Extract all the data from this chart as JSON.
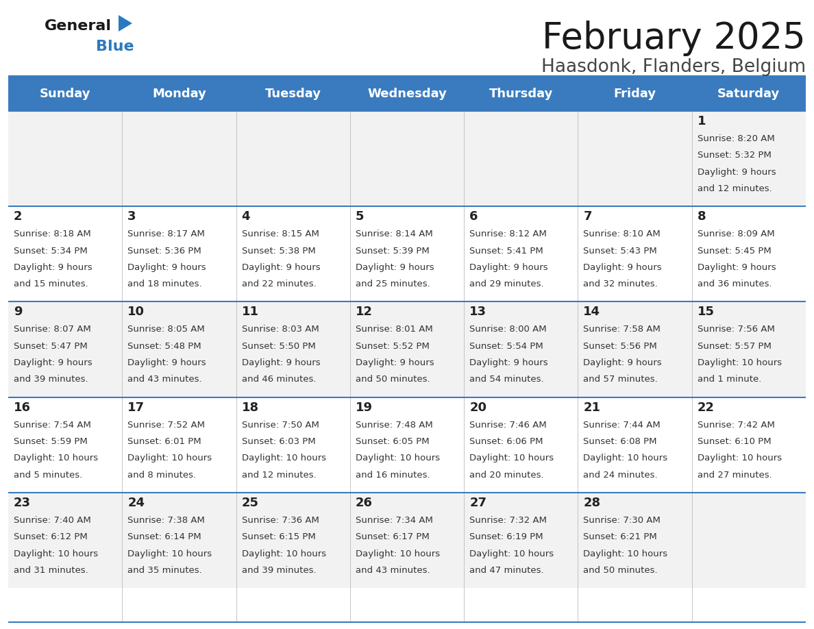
{
  "title": "February 2025",
  "subtitle": "Haasdonk, Flanders, Belgium",
  "header_color": "#3a7bbf",
  "header_text_color": "#ffffff",
  "cell_bg_odd": "#f2f2f2",
  "cell_bg_even": "#ffffff",
  "border_color": "#3a7bbf",
  "day_headers": [
    "Sunday",
    "Monday",
    "Tuesday",
    "Wednesday",
    "Thursday",
    "Friday",
    "Saturday"
  ],
  "title_color": "#1a1a1a",
  "subtitle_color": "#444444",
  "day_num_color": "#222222",
  "info_color": "#333333",
  "weeks": [
    [
      {
        "day": "",
        "info": ""
      },
      {
        "day": "",
        "info": ""
      },
      {
        "day": "",
        "info": ""
      },
      {
        "day": "",
        "info": ""
      },
      {
        "day": "",
        "info": ""
      },
      {
        "day": "",
        "info": ""
      },
      {
        "day": "1",
        "info": "Sunrise: 8:20 AM\nSunset: 5:32 PM\nDaylight: 9 hours\nand 12 minutes."
      }
    ],
    [
      {
        "day": "2",
        "info": "Sunrise: 8:18 AM\nSunset: 5:34 PM\nDaylight: 9 hours\nand 15 minutes."
      },
      {
        "day": "3",
        "info": "Sunrise: 8:17 AM\nSunset: 5:36 PM\nDaylight: 9 hours\nand 18 minutes."
      },
      {
        "day": "4",
        "info": "Sunrise: 8:15 AM\nSunset: 5:38 PM\nDaylight: 9 hours\nand 22 minutes."
      },
      {
        "day": "5",
        "info": "Sunrise: 8:14 AM\nSunset: 5:39 PM\nDaylight: 9 hours\nand 25 minutes."
      },
      {
        "day": "6",
        "info": "Sunrise: 8:12 AM\nSunset: 5:41 PM\nDaylight: 9 hours\nand 29 minutes."
      },
      {
        "day": "7",
        "info": "Sunrise: 8:10 AM\nSunset: 5:43 PM\nDaylight: 9 hours\nand 32 minutes."
      },
      {
        "day": "8",
        "info": "Sunrise: 8:09 AM\nSunset: 5:45 PM\nDaylight: 9 hours\nand 36 minutes."
      }
    ],
    [
      {
        "day": "9",
        "info": "Sunrise: 8:07 AM\nSunset: 5:47 PM\nDaylight: 9 hours\nand 39 minutes."
      },
      {
        "day": "10",
        "info": "Sunrise: 8:05 AM\nSunset: 5:48 PM\nDaylight: 9 hours\nand 43 minutes."
      },
      {
        "day": "11",
        "info": "Sunrise: 8:03 AM\nSunset: 5:50 PM\nDaylight: 9 hours\nand 46 minutes."
      },
      {
        "day": "12",
        "info": "Sunrise: 8:01 AM\nSunset: 5:52 PM\nDaylight: 9 hours\nand 50 minutes."
      },
      {
        "day": "13",
        "info": "Sunrise: 8:00 AM\nSunset: 5:54 PM\nDaylight: 9 hours\nand 54 minutes."
      },
      {
        "day": "14",
        "info": "Sunrise: 7:58 AM\nSunset: 5:56 PM\nDaylight: 9 hours\nand 57 minutes."
      },
      {
        "day": "15",
        "info": "Sunrise: 7:56 AM\nSunset: 5:57 PM\nDaylight: 10 hours\nand 1 minute."
      }
    ],
    [
      {
        "day": "16",
        "info": "Sunrise: 7:54 AM\nSunset: 5:59 PM\nDaylight: 10 hours\nand 5 minutes."
      },
      {
        "day": "17",
        "info": "Sunrise: 7:52 AM\nSunset: 6:01 PM\nDaylight: 10 hours\nand 8 minutes."
      },
      {
        "day": "18",
        "info": "Sunrise: 7:50 AM\nSunset: 6:03 PM\nDaylight: 10 hours\nand 12 minutes."
      },
      {
        "day": "19",
        "info": "Sunrise: 7:48 AM\nSunset: 6:05 PM\nDaylight: 10 hours\nand 16 minutes."
      },
      {
        "day": "20",
        "info": "Sunrise: 7:46 AM\nSunset: 6:06 PM\nDaylight: 10 hours\nand 20 minutes."
      },
      {
        "day": "21",
        "info": "Sunrise: 7:44 AM\nSunset: 6:08 PM\nDaylight: 10 hours\nand 24 minutes."
      },
      {
        "day": "22",
        "info": "Sunrise: 7:42 AM\nSunset: 6:10 PM\nDaylight: 10 hours\nand 27 minutes."
      }
    ],
    [
      {
        "day": "23",
        "info": "Sunrise: 7:40 AM\nSunset: 6:12 PM\nDaylight: 10 hours\nand 31 minutes."
      },
      {
        "day": "24",
        "info": "Sunrise: 7:38 AM\nSunset: 6:14 PM\nDaylight: 10 hours\nand 35 minutes."
      },
      {
        "day": "25",
        "info": "Sunrise: 7:36 AM\nSunset: 6:15 PM\nDaylight: 10 hours\nand 39 minutes."
      },
      {
        "day": "26",
        "info": "Sunrise: 7:34 AM\nSunset: 6:17 PM\nDaylight: 10 hours\nand 43 minutes."
      },
      {
        "day": "27",
        "info": "Sunrise: 7:32 AM\nSunset: 6:19 PM\nDaylight: 10 hours\nand 47 minutes."
      },
      {
        "day": "28",
        "info": "Sunrise: 7:30 AM\nSunset: 6:21 PM\nDaylight: 10 hours\nand 50 minutes."
      },
      {
        "day": "",
        "info": ""
      }
    ]
  ],
  "logo_general_color": "#1a1a1a",
  "logo_blue_color": "#2a7abf",
  "figsize": [
    11.88,
    9.18
  ],
  "dpi": 100
}
